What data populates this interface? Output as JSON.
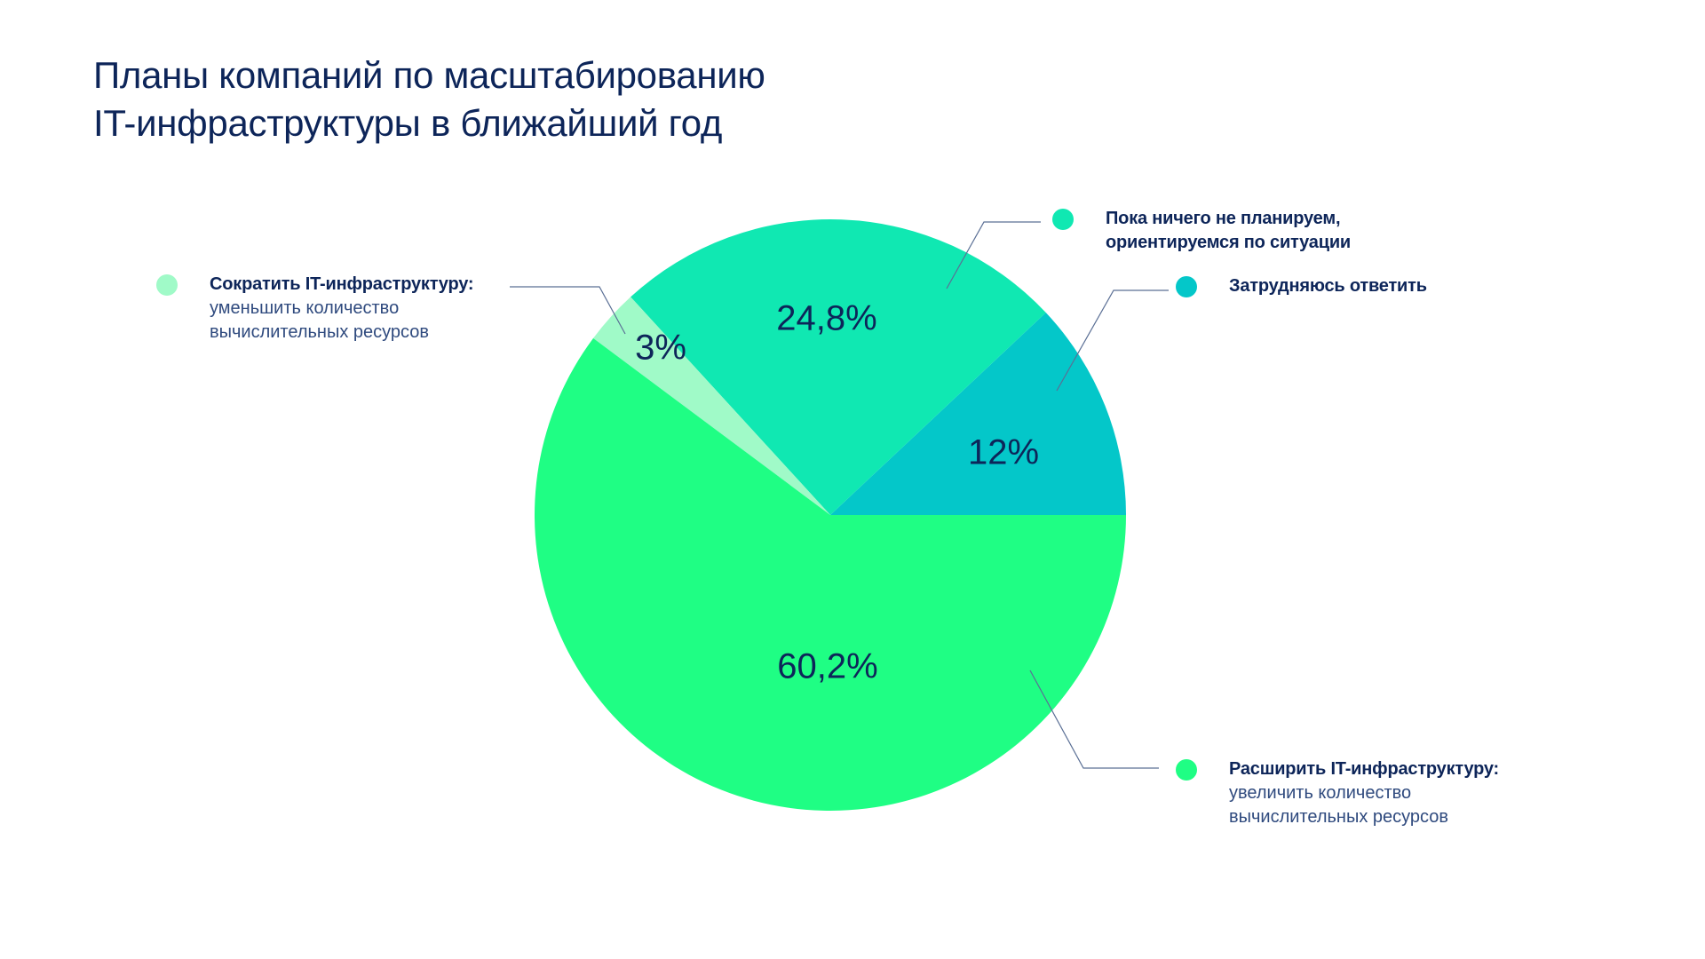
{
  "title": {
    "line1": "Планы компаний по масштабированию",
    "line2": "IT-инфраструктуры в ближайший год"
  },
  "colors": {
    "text": "#0d2559",
    "leader": "#5a6f95"
  },
  "chart_data": {
    "type": "pie",
    "title": "Планы компаний по масштабированию IT-инфраструктуры в ближайший год",
    "unit": "%",
    "start": "3 o'clock, counterclockwise",
    "slices": [
      {
        "key": "hard",
        "value": 12,
        "label": "12%",
        "legend_title": "Затрудняюсь ответить",
        "legend_sub": "",
        "color": "#04c7c9"
      },
      {
        "key": "none",
        "value": 24.8,
        "label": "24,8%",
        "legend_title": "Пока ничего не планируем, ориентируемся по ситуации",
        "legend_sub": "",
        "color": "#10e8b2"
      },
      {
        "key": "reduce",
        "value": 3,
        "label": "3%",
        "legend_title": "Сократить IT-инфраструктуру:",
        "legend_sub": "уменьшить количество вычислительных ресурсов",
        "color": "#a0fac8"
      },
      {
        "key": "expand",
        "value": 60.2,
        "label": "60,2%",
        "legend_title": "Расширить IT-инфраструктуру:",
        "legend_sub": "увеличить количество вычислительных ресурсов",
        "color": "#1ffe84"
      }
    ]
  }
}
